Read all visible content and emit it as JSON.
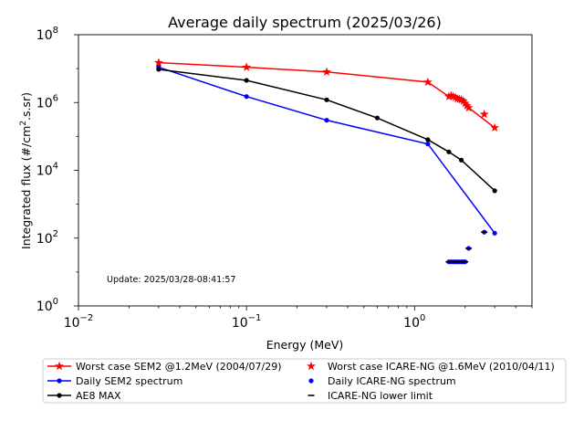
{
  "chart_data": {
    "type": "line",
    "title": "Average daily spectrum (2025/03/26)",
    "xlabel": "Energy (MeV)",
    "ylabel_prefix": "Integrated flux (#/cm",
    "ylabel_sup": "2",
    "ylabel_suffix": ".s.sr)",
    "x_scale": "log",
    "y_scale": "log",
    "xlim": [
      0.01,
      5
    ],
    "ylim": [
      1,
      100000000
    ],
    "x_ticks": [
      {
        "value": 0.01,
        "base": "10",
        "exp": "−2"
      },
      {
        "value": 0.1,
        "base": "10",
        "exp": "−1"
      },
      {
        "value": 1,
        "base": "10",
        "exp": "0"
      }
    ],
    "y_ticks": [
      {
        "value": 1,
        "base": "10",
        "exp": "0"
      },
      {
        "value": 100,
        "base": "10",
        "exp": "2"
      },
      {
        "value": 10000,
        "base": "10",
        "exp": "4"
      },
      {
        "value": 1000000,
        "base": "10",
        "exp": "6"
      },
      {
        "value": 100000000,
        "base": "10",
        "exp": "8"
      }
    ],
    "grid": false,
    "legend_position": "below plot, two columns",
    "annotation": "Update: 2025/03/28-08:41:57",
    "series": [
      {
        "name": "Worst case SEM2 @1.2MeV (2004/07/29)",
        "color": "#ff0000",
        "style": "line",
        "marker": "star",
        "x": [
          0.03,
          0.1,
          0.3,
          1.2,
          1.6,
          1.65,
          1.7,
          1.75,
          1.8,
          1.85,
          1.9,
          1.95,
          2.0,
          2.05,
          2.1,
          3.0
        ],
        "y": [
          15000000,
          11000000,
          8000000,
          4000000,
          1500000,
          1600000,
          1500000,
          1400000,
          1300000,
          1250000,
          1200000,
          1100000,
          950000,
          800000,
          700000,
          180000
        ]
      },
      {
        "name": "Daily SEM2 spectrum",
        "color": "#0000ff",
        "style": "line",
        "marker": "dot",
        "x": [
          0.03,
          0.1,
          0.3,
          1.2,
          3.0
        ],
        "y": [
          11000000,
          1500000,
          300000,
          60000,
          140
        ]
      },
      {
        "name": "AE8 MAX",
        "color": "#000000",
        "style": "line",
        "marker": "dot",
        "x": [
          0.03,
          0.1,
          0.3,
          0.6,
          1.2,
          1.6,
          1.9,
          3.0
        ],
        "y": [
          9500000,
          4500000,
          1200000,
          350000,
          80000,
          35000,
          20000,
          2500
        ]
      },
      {
        "name": "Worst case ICARE-NG @1.6MeV (2010/04/11)",
        "color": "#ff0000",
        "style": "scatter",
        "marker": "star",
        "x": [
          2.6
        ],
        "y": [
          450000
        ]
      },
      {
        "name": "Daily ICARE-NG spectrum",
        "color": "#0000ff",
        "style": "scatter",
        "marker": "dot",
        "x": [
          1.6,
          1.65,
          1.7,
          1.75,
          1.8,
          1.85,
          1.9,
          1.95,
          2.0,
          2.1,
          2.6
        ],
        "y": [
          20,
          20,
          20,
          20,
          20,
          20,
          20,
          20,
          20,
          50,
          150
        ]
      },
      {
        "name": "ICARE-NG lower limit",
        "color": "#000000",
        "style": "scatter",
        "marker": "dash",
        "x": [
          1.6,
          1.65,
          1.7,
          1.75,
          1.8,
          1.85,
          1.9,
          1.95,
          2.0,
          2.1,
          2.6
        ],
        "y": [
          20,
          20,
          20,
          20,
          20,
          20,
          20,
          20,
          20,
          50,
          150
        ]
      }
    ]
  }
}
